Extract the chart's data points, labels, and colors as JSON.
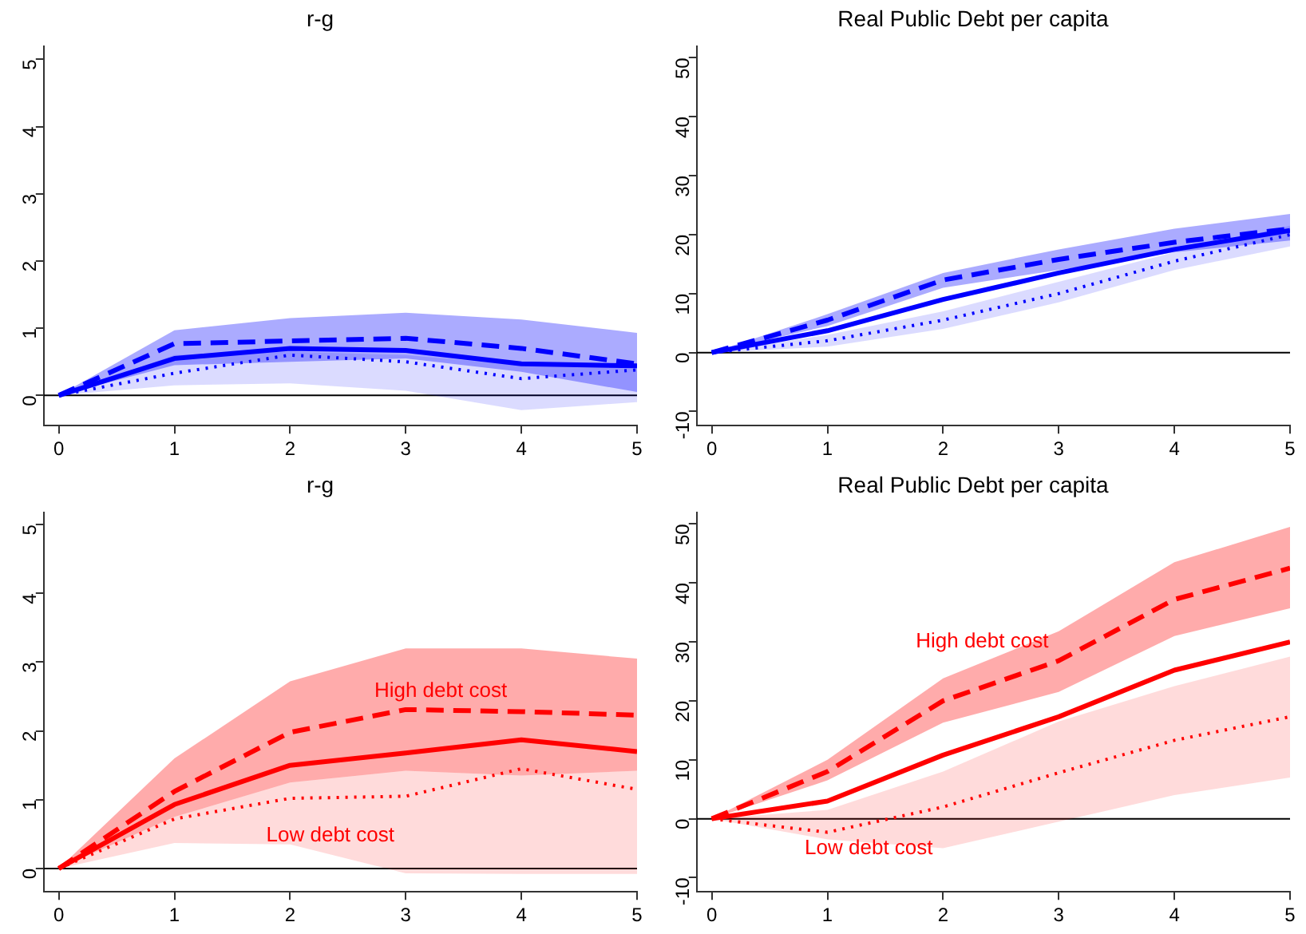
{
  "chart_data": [
    {
      "type": "line",
      "title": "r-g",
      "x": [
        0,
        1,
        2,
        3,
        4,
        5
      ],
      "xlim": [
        -0.13,
        5
      ],
      "xticks": [
        0,
        1,
        2,
        3,
        4,
        5
      ],
      "ylim": [
        -0.45,
        5.2
      ],
      "yticks": [
        0,
        1,
        2,
        3,
        4,
        5
      ],
      "grid": false,
      "legend": false,
      "marker": "none",
      "ref_lines": [
        {
          "axis": "y",
          "value": 0,
          "color": "#000000"
        }
      ],
      "series": [
        {
          "color": "#0000ff",
          "line_style": "dotted",
          "values": [
            0,
            0.33,
            0.6,
            0.5,
            0.25,
            0.38
          ],
          "lower": [
            0,
            0.15,
            0.18,
            0.07,
            -0.22,
            -0.1
          ],
          "upper": [
            0,
            0.6,
            0.65,
            0.6,
            0.45,
            0.45
          ]
        },
        {
          "color": "#0000ff",
          "line_style": "dashed",
          "values": [
            0,
            0.77,
            0.81,
            0.85,
            0.7,
            0.47
          ],
          "lower": [
            0,
            0.45,
            0.5,
            0.55,
            0.35,
            0.05
          ],
          "upper": [
            0,
            0.97,
            1.15,
            1.23,
            1.13,
            0.93
          ]
        },
        {
          "color": "#0000ff",
          "line_style": "solid",
          "values": [
            0,
            0.55,
            0.7,
            0.67,
            0.47,
            0.44
          ]
        }
      ]
    },
    {
      "type": "line",
      "title": "Real Public Debt per capita",
      "x": [
        0,
        1,
        2,
        3,
        4,
        5
      ],
      "xlim": [
        -0.13,
        5
      ],
      "xticks": [
        0,
        1,
        2,
        3,
        4,
        5
      ],
      "ylim": [
        -12.4,
        52
      ],
      "yticks": [
        -10,
        0,
        10,
        20,
        30,
        40,
        50
      ],
      "grid": false,
      "legend": false,
      "marker": "none",
      "ref_lines": [
        {
          "axis": "y",
          "value": 0,
          "color": "#000000"
        }
      ],
      "series": [
        {
          "color": "#0000ff",
          "line_style": "dotted",
          "values": [
            0,
            2,
            5.5,
            10,
            15.5,
            20
          ],
          "lower": [
            0,
            1,
            4,
            8.5,
            14,
            18
          ],
          "upper": [
            0,
            3,
            7,
            12,
            17,
            21.5
          ]
        },
        {
          "color": "#0000ff",
          "line_style": "dashed",
          "values": [
            0,
            5.5,
            12.3,
            15.8,
            18.7,
            21
          ],
          "lower": [
            0,
            4.5,
            11,
            14,
            17,
            19
          ],
          "upper": [
            0,
            6.5,
            13.5,
            17.5,
            21,
            23.5
          ]
        },
        {
          "color": "#0000ff",
          "line_style": "solid",
          "values": [
            0,
            3.7,
            9,
            13.5,
            17.5,
            20.7
          ]
        }
      ]
    },
    {
      "type": "line",
      "title": "r-g",
      "x": [
        0,
        1,
        2,
        3,
        4,
        5
      ],
      "xlim": [
        -0.13,
        5
      ],
      "xticks": [
        0,
        1,
        2,
        3,
        4,
        5
      ],
      "ylim": [
        -0.34,
        5.18
      ],
      "yticks": [
        0,
        1,
        2,
        3,
        4,
        5
      ],
      "grid": false,
      "legend": false,
      "marker": "none",
      "ref_lines": [
        {
          "axis": "y",
          "value": 0,
          "color": "#000000"
        }
      ],
      "annotations": [
        "High debt cost",
        "Low debt cost"
      ],
      "series": [
        {
          "color": "#ff0000",
          "line_style": "dotted",
          "values": [
            0,
            0.72,
            1.02,
            1.05,
            1.45,
            1.15
          ],
          "lower": [
            0,
            0.37,
            0.35,
            -0.07,
            -0.08,
            -0.08
          ],
          "upper": [
            0,
            0.75,
            1.25,
            1.42,
            1.35,
            1.42
          ]
        },
        {
          "color": "#ff0000",
          "line_style": "dashed",
          "values": [
            0,
            1.12,
            1.98,
            2.31,
            2.28,
            2.23
          ],
          "lower": [
            0,
            0.75,
            1.25,
            1.42,
            1.35,
            1.42
          ],
          "upper": [
            0,
            1.6,
            2.72,
            3.2,
            3.2,
            3.05
          ]
        },
        {
          "color": "#ff0000",
          "line_style": "solid",
          "values": [
            0,
            0.93,
            1.5,
            1.68,
            1.87,
            1.7
          ]
        }
      ]
    },
    {
      "type": "line",
      "title": "Real Public Debt per capita",
      "x": [
        0,
        1,
        2,
        3,
        4,
        5
      ],
      "xlim": [
        -0.13,
        5
      ],
      "xticks": [
        0,
        1,
        2,
        3,
        4,
        5
      ],
      "ylim": [
        -12.4,
        52
      ],
      "yticks": [
        -10,
        0,
        10,
        20,
        30,
        40,
        50
      ],
      "grid": false,
      "legend": false,
      "marker": "none",
      "ref_lines": [
        {
          "axis": "y",
          "value": 0,
          "color": "#000000"
        }
      ],
      "annotations": [
        "High debt cost",
        "Low debt cost"
      ],
      "series": [
        {
          "color": "#ff0000",
          "line_style": "dotted",
          "values": [
            0,
            -2.3,
            2,
            7.8,
            13.3,
            17.3
          ],
          "lower": [
            0,
            -3.5,
            -5,
            -0.5,
            4,
            7
          ],
          "upper": [
            0,
            1.5,
            8,
            16.5,
            22.5,
            27.5
          ]
        },
        {
          "color": "#ff0000",
          "line_style": "dashed",
          "values": [
            0,
            8,
            20,
            26.8,
            37.2,
            42.5
          ],
          "lower": [
            0,
            6.5,
            16.3,
            21.5,
            31,
            35.7
          ],
          "upper": [
            0,
            10,
            23.8,
            31.8,
            43.5,
            49.5
          ]
        },
        {
          "color": "#ff0000",
          "line_style": "solid",
          "values": [
            0,
            3,
            10.8,
            17.3,
            25.2,
            30
          ]
        }
      ]
    }
  ]
}
